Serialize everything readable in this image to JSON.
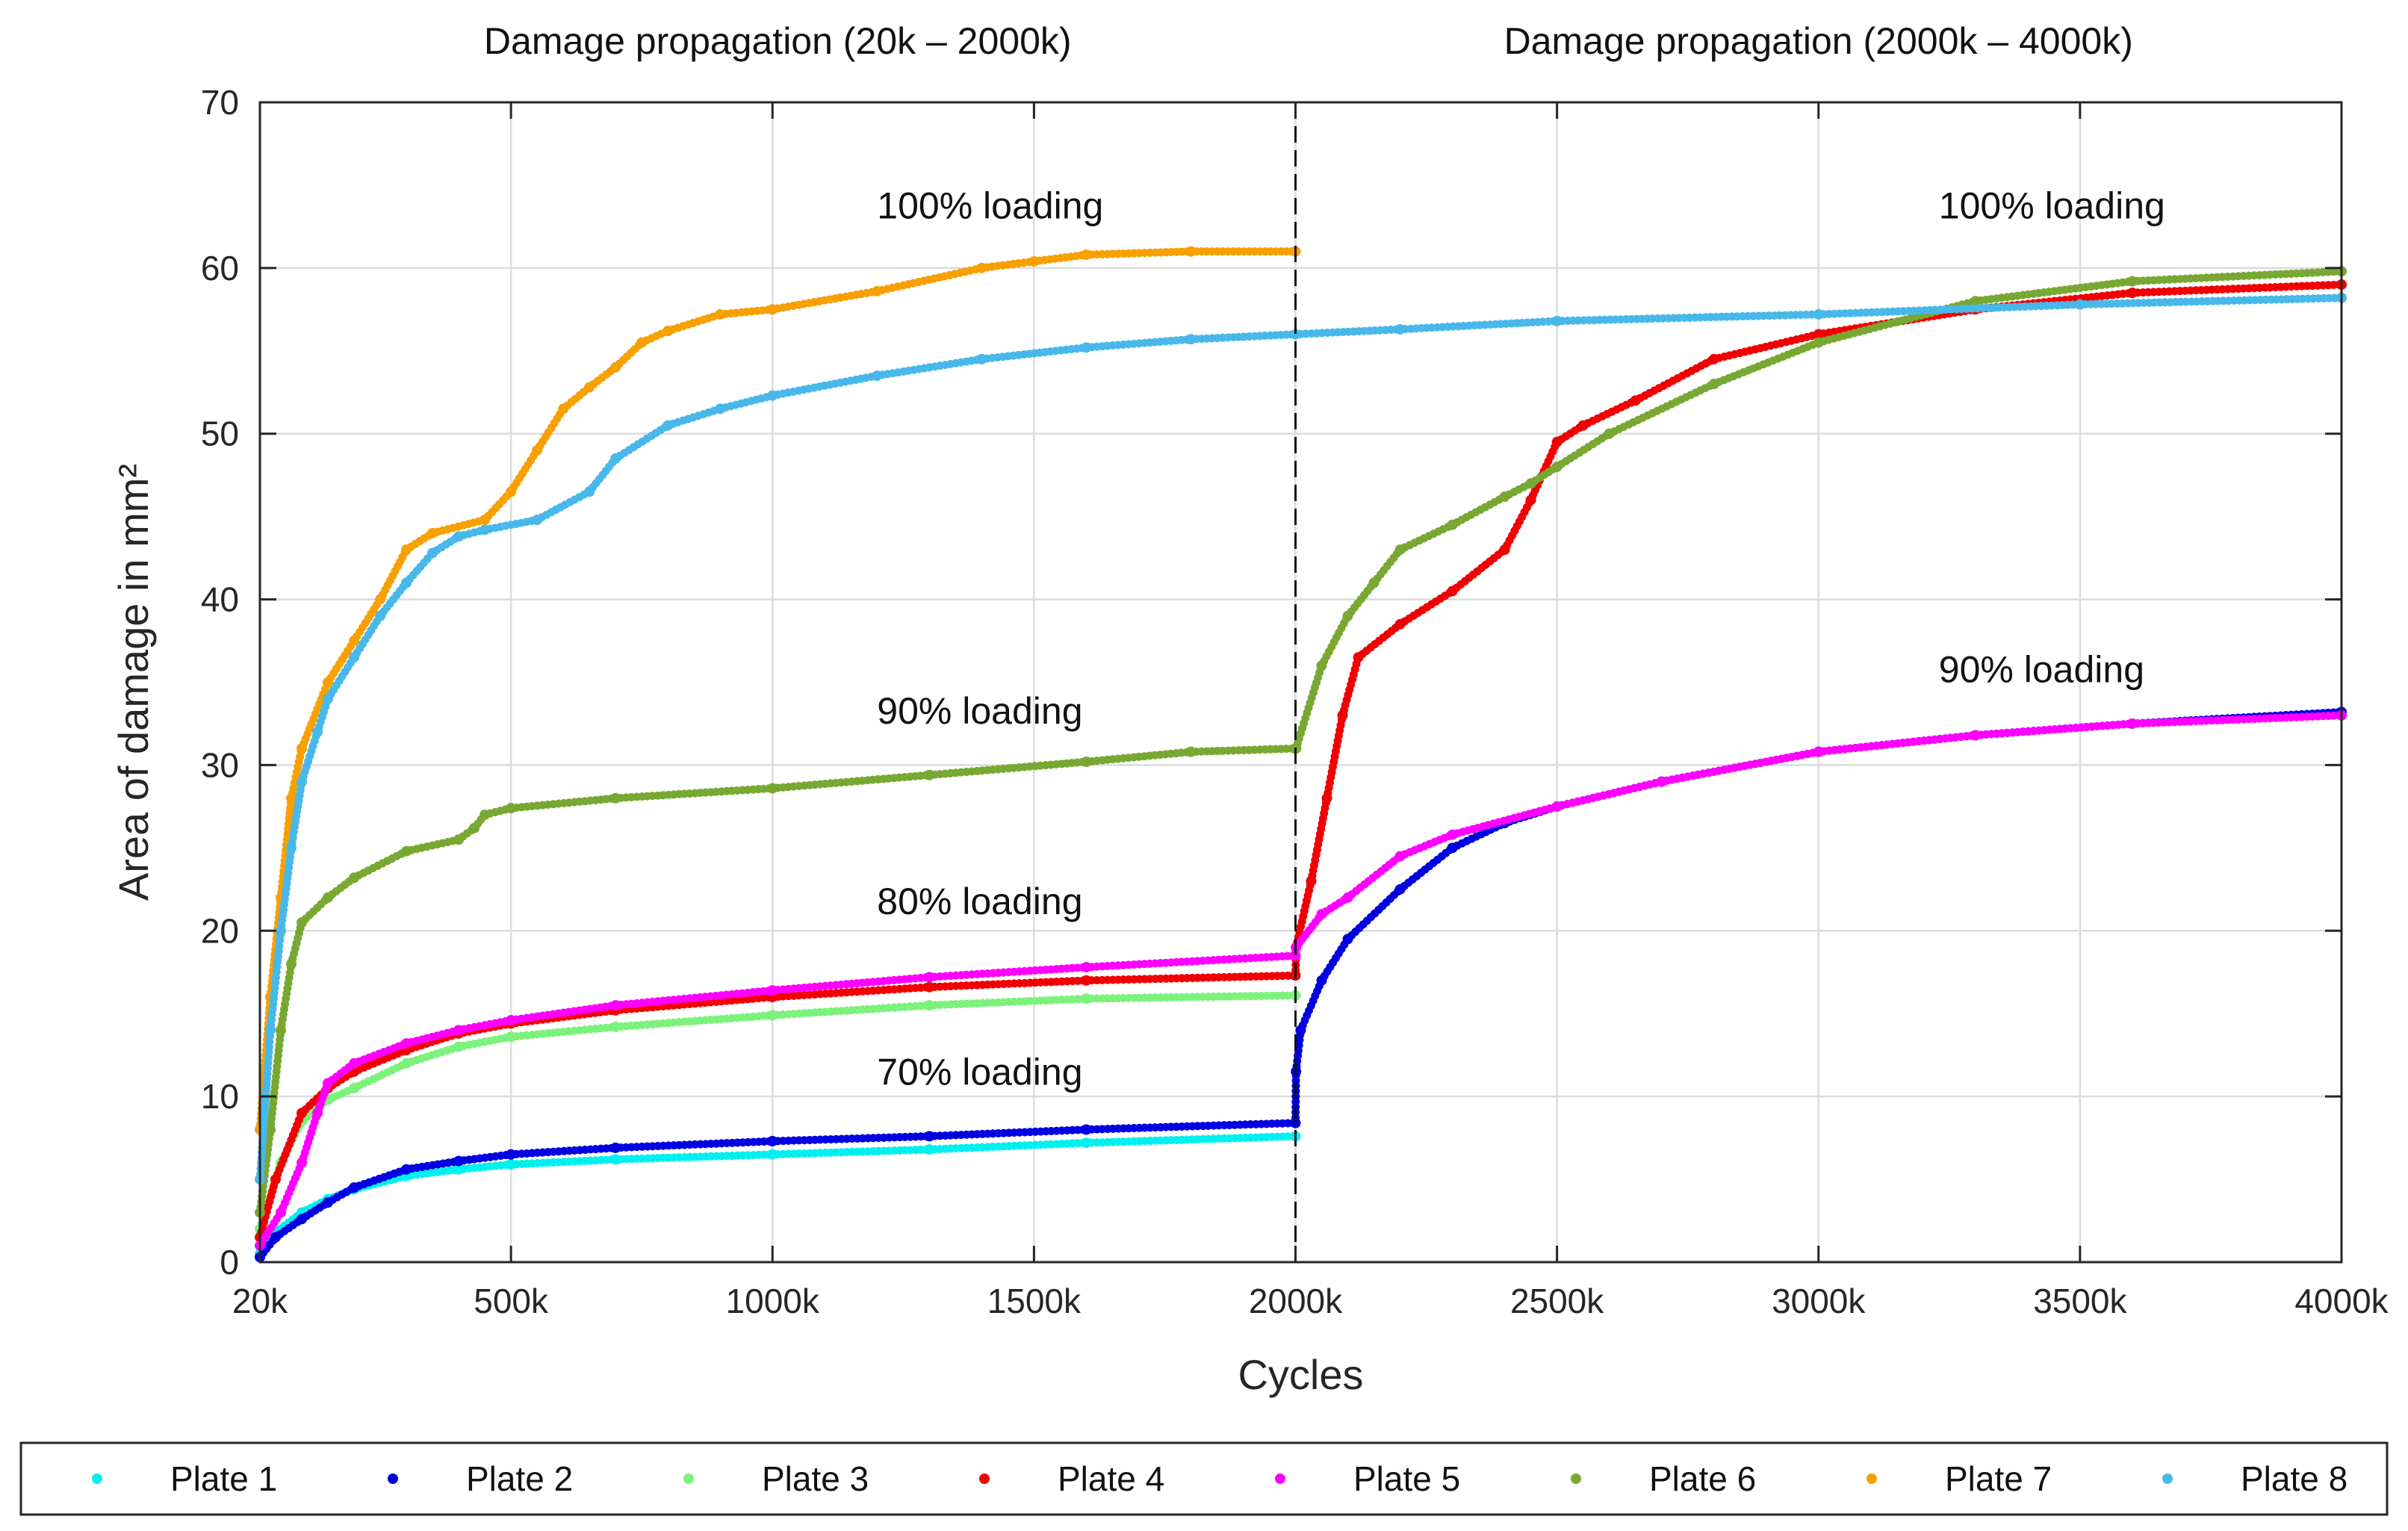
{
  "chart_data": {
    "type": "scatter",
    "panel_titles": [
      "Damage propagation (20k – 2000k)",
      "Damage propagation (2000k – 4000k)"
    ],
    "xlabel": "Cycles",
    "ylabel": "Area of damage in mm²",
    "xlim": [
      20,
      4000
    ],
    "ylim": [
      0,
      70
    ],
    "x_ticks": [
      {
        "value": 20,
        "label": "20k"
      },
      {
        "value": 500,
        "label": "500k"
      },
      {
        "value": 1000,
        "label": "1000k"
      },
      {
        "value": 1500,
        "label": "1500k"
      },
      {
        "value": 2000,
        "label": "2000k"
      },
      {
        "value": 2500,
        "label": "2500k"
      },
      {
        "value": 3000,
        "label": "3000k"
      },
      {
        "value": 3500,
        "label": "3500k"
      },
      {
        "value": 4000,
        "label": "4000k"
      }
    ],
    "y_ticks": [
      0,
      10,
      20,
      30,
      40,
      50,
      60,
      70
    ],
    "grid": true,
    "divider_x": 2000,
    "annotations": [
      {
        "text": "100% loading",
        "x": 1200,
        "y": 63
      },
      {
        "text": "90% loading",
        "x": 1200,
        "y": 32.5
      },
      {
        "text": "80% loading",
        "x": 1200,
        "y": 21
      },
      {
        "text": "70% loading",
        "x": 1200,
        "y": 10.7
      },
      {
        "text": "100% loading",
        "x": 3230,
        "y": 63
      },
      {
        "text": "90% loading",
        "x": 3230,
        "y": 35
      }
    ],
    "legend_position": "bottom",
    "series": [
      {
        "name": "Plate 1",
        "color": "#00F0F0",
        "points": [
          [
            20,
            0.5
          ],
          [
            50,
            1.8
          ],
          [
            100,
            3
          ],
          [
            150,
            3.8
          ],
          [
            200,
            4.4
          ],
          [
            300,
            5.2
          ],
          [
            400,
            5.6
          ],
          [
            500,
            5.9
          ],
          [
            700,
            6.2
          ],
          [
            1000,
            6.5
          ],
          [
            1300,
            6.8
          ],
          [
            1600,
            7.2
          ],
          [
            2000,
            7.6
          ]
        ]
      },
      {
        "name": "Plate 2",
        "color": "#0000E0",
        "points": [
          [
            20,
            0.3
          ],
          [
            50,
            1.5
          ],
          [
            100,
            2.6
          ],
          [
            150,
            3.6
          ],
          [
            200,
            4.5
          ],
          [
            300,
            5.6
          ],
          [
            400,
            6.1
          ],
          [
            500,
            6.5
          ],
          [
            700,
            6.9
          ],
          [
            1000,
            7.3
          ],
          [
            1300,
            7.6
          ],
          [
            1600,
            8
          ],
          [
            2000,
            8.4
          ],
          [
            2001,
            11.5
          ],
          [
            2010,
            14
          ],
          [
            2050,
            17
          ],
          [
            2100,
            19.5
          ],
          [
            2200,
            22.5
          ],
          [
            2300,
            25
          ],
          [
            2400,
            26.5
          ],
          [
            2500,
            27.5
          ],
          [
            2700,
            29
          ],
          [
            3000,
            30.8
          ],
          [
            3300,
            31.8
          ],
          [
            3600,
            32.5
          ],
          [
            4000,
            33.2
          ]
        ]
      },
      {
        "name": "Plate 3",
        "color": "#7CF27C",
        "points": [
          [
            20,
            2
          ],
          [
            60,
            6
          ],
          [
            100,
            8.5
          ],
          [
            150,
            9.8
          ],
          [
            200,
            10.5
          ],
          [
            300,
            12
          ],
          [
            400,
            13
          ],
          [
            500,
            13.6
          ],
          [
            700,
            14.2
          ],
          [
            1000,
            14.9
          ],
          [
            1300,
            15.5
          ],
          [
            1600,
            15.9
          ],
          [
            2000,
            16.1
          ]
        ]
      },
      {
        "name": "Plate 4",
        "color": "#F00000",
        "points": [
          [
            20,
            1.5
          ],
          [
            50,
            5
          ],
          [
            100,
            9
          ],
          [
            150,
            10.5
          ],
          [
            200,
            11.5
          ],
          [
            300,
            12.8
          ],
          [
            400,
            13.8
          ],
          [
            500,
            14.4
          ],
          [
            700,
            15.2
          ],
          [
            1000,
            16
          ],
          [
            1300,
            16.6
          ],
          [
            1600,
            17
          ],
          [
            2000,
            17.3
          ],
          [
            2001,
            19
          ],
          [
            2030,
            23
          ],
          [
            2060,
            28
          ],
          [
            2090,
            33
          ],
          [
            2120,
            36.5
          ],
          [
            2200,
            38.5
          ],
          [
            2300,
            40.5
          ],
          [
            2400,
            43
          ],
          [
            2450,
            46
          ],
          [
            2500,
            49.5
          ],
          [
            2550,
            50.5
          ],
          [
            2650,
            52
          ],
          [
            2800,
            54.5
          ],
          [
            3000,
            56
          ],
          [
            3300,
            57.5
          ],
          [
            3600,
            58.5
          ],
          [
            4000,
            59
          ]
        ]
      },
      {
        "name": "Plate 5",
        "color": "#FF00FF",
        "points": [
          [
            20,
            1
          ],
          [
            60,
            3
          ],
          [
            100,
            6
          ],
          [
            130,
            9
          ],
          [
            150,
            10.8
          ],
          [
            200,
            12
          ],
          [
            300,
            13.2
          ],
          [
            400,
            14
          ],
          [
            500,
            14.6
          ],
          [
            700,
            15.5
          ],
          [
            1000,
            16.4
          ],
          [
            1300,
            17.2
          ],
          [
            1600,
            17.8
          ],
          [
            2000,
            18.5
          ],
          [
            2001,
            19
          ],
          [
            2050,
            21
          ],
          [
            2100,
            22
          ],
          [
            2200,
            24.5
          ],
          [
            2300,
            25.8
          ],
          [
            2500,
            27.5
          ],
          [
            2700,
            29
          ],
          [
            3000,
            30.8
          ],
          [
            3300,
            31.8
          ],
          [
            3600,
            32.5
          ],
          [
            4000,
            33
          ]
        ]
      },
      {
        "name": "Plate 6",
        "color": "#78A832",
        "points": [
          [
            20,
            3
          ],
          [
            40,
            8
          ],
          [
            60,
            14
          ],
          [
            80,
            18
          ],
          [
            100,
            20.5
          ],
          [
            150,
            22
          ],
          [
            200,
            23.2
          ],
          [
            300,
            24.8
          ],
          [
            400,
            25.5
          ],
          [
            430,
            26.2
          ],
          [
            450,
            27
          ],
          [
            500,
            27.4
          ],
          [
            700,
            28
          ],
          [
            1000,
            28.6
          ],
          [
            1300,
            29.4
          ],
          [
            1600,
            30.2
          ],
          [
            1800,
            30.8
          ],
          [
            2000,
            31
          ],
          [
            2001,
            31
          ],
          [
            2050,
            36
          ],
          [
            2100,
            39
          ],
          [
            2150,
            41
          ],
          [
            2200,
            43
          ],
          [
            2300,
            44.5
          ],
          [
            2400,
            46.2
          ],
          [
            2450,
            47
          ],
          [
            2500,
            48
          ],
          [
            2600,
            50
          ],
          [
            2800,
            53
          ],
          [
            3000,
            55.5
          ],
          [
            3300,
            58
          ],
          [
            3600,
            59.2
          ],
          [
            4000,
            59.8
          ]
        ]
      },
      {
        "name": "Plate 7",
        "color": "#F8A000",
        "points": [
          [
            20,
            8
          ],
          [
            40,
            16
          ],
          [
            60,
            22
          ],
          [
            80,
            28
          ],
          [
            100,
            31
          ],
          [
            150,
            35
          ],
          [
            200,
            37.5
          ],
          [
            250,
            40
          ],
          [
            300,
            43
          ],
          [
            350,
            44
          ],
          [
            450,
            44.8
          ],
          [
            500,
            46.5
          ],
          [
            550,
            49
          ],
          [
            600,
            51.5
          ],
          [
            650,
            52.8
          ],
          [
            700,
            54
          ],
          [
            750,
            55.5
          ],
          [
            800,
            56.2
          ],
          [
            900,
            57.2
          ],
          [
            1000,
            57.5
          ],
          [
            1200,
            58.6
          ],
          [
            1400,
            60
          ],
          [
            1500,
            60.4
          ],
          [
            1600,
            60.8
          ],
          [
            1800,
            61
          ],
          [
            2000,
            61
          ]
        ]
      },
      {
        "name": "Plate 8",
        "color": "#48B8EA",
        "points": [
          [
            20,
            5
          ],
          [
            40,
            14
          ],
          [
            60,
            20
          ],
          [
            80,
            25
          ],
          [
            100,
            29
          ],
          [
            130,
            32
          ],
          [
            150,
            34
          ],
          [
            200,
            36.5
          ],
          [
            250,
            39
          ],
          [
            300,
            41
          ],
          [
            350,
            42.8
          ],
          [
            400,
            43.8
          ],
          [
            450,
            44.2
          ],
          [
            550,
            44.8
          ],
          [
            650,
            46.5
          ],
          [
            700,
            48.5
          ],
          [
            800,
            50.5
          ],
          [
            900,
            51.5
          ],
          [
            1000,
            52.3
          ],
          [
            1200,
            53.5
          ],
          [
            1400,
            54.5
          ],
          [
            1600,
            55.2
          ],
          [
            1800,
            55.7
          ],
          [
            2000,
            56
          ],
          [
            2200,
            56.3
          ],
          [
            2500,
            56.8
          ],
          [
            3000,
            57.2
          ],
          [
            3500,
            57.8
          ],
          [
            4000,
            58.2
          ]
        ]
      }
    ]
  }
}
